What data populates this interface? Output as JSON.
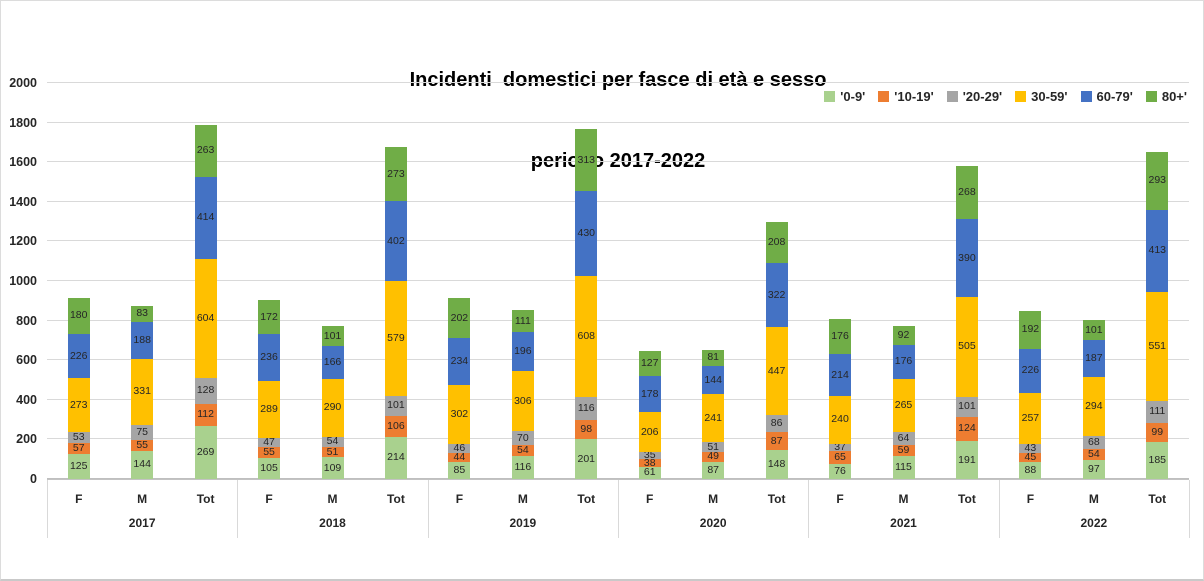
{
  "title": {
    "line1": "Incidenti  domestici per fasce di età e sesso",
    "line2": "periodo 2017-2022"
  },
  "chart_data": {
    "type": "bar",
    "stacked": true,
    "title": "Incidenti  domestici per fasce di età e sesso periodo 2017-2022",
    "xlabel": "",
    "ylabel": "",
    "grid": true,
    "legend_position": "top-right",
    "y_axis": {
      "min": 0,
      "max": 2000,
      "step": 200
    },
    "y_ticks": [
      0,
      200,
      400,
      600,
      800,
      1000,
      1200,
      1400,
      1600,
      1800,
      2000
    ],
    "groups": [
      "2017",
      "2018",
      "2019",
      "2020",
      "2021",
      "2022"
    ],
    "categories": [
      "F",
      "M",
      "Tot"
    ],
    "series": [
      {
        "name": "'0-9'",
        "color": "#a9d18e",
        "values": [
          125,
          144,
          269,
          105,
          109,
          214,
          85,
          116,
          201,
          61,
          87,
          148,
          76,
          115,
          191,
          88,
          97,
          185
        ]
      },
      {
        "name": "'10-19'",
        "color": "#ed7d31",
        "values": [
          57,
          55,
          112,
          55,
          51,
          106,
          44,
          54,
          98,
          38,
          49,
          87,
          65,
          59,
          124,
          45,
          54,
          99
        ]
      },
      {
        "name": "'20-29'",
        "color": "#a5a5a5",
        "values": [
          53,
          75,
          128,
          47,
          54,
          101,
          46,
          70,
          116,
          35,
          51,
          86,
          37,
          64,
          101,
          43,
          68,
          111
        ]
      },
      {
        "name": "30-59'",
        "color": "#ffc000",
        "values": [
          273,
          331,
          604,
          289,
          290,
          579,
          302,
          306,
          608,
          206,
          241,
          447,
          240,
          265,
          505,
          257,
          294,
          551
        ]
      },
      {
        "name": "60-79'",
        "color": "#4472c4",
        "values": [
          226,
          188,
          414,
          236,
          166,
          402,
          234,
          196,
          430,
          178,
          144,
          322,
          214,
          176,
          390,
          226,
          187,
          413
        ]
      },
      {
        "name": "80+'",
        "color": "#70ad47",
        "values": [
          180,
          83,
          263,
          172,
          101,
          273,
          202,
          111,
          313,
          127,
          81,
          208,
          176,
          92,
          268,
          192,
          101,
          293
        ]
      }
    ]
  }
}
